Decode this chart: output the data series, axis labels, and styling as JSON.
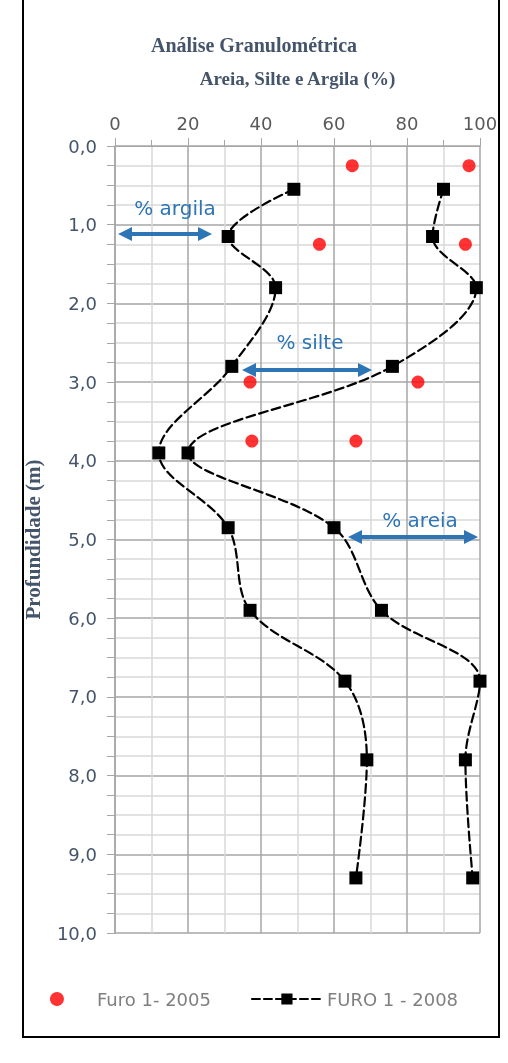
{
  "chart_data": {
    "type": "line",
    "title": "Análise Granulométrica",
    "xlabel": "Areia, Silte e Argila (%)",
    "ylabel": "Profundidade (m)",
    "xlim": [
      0,
      100
    ],
    "xticks": [
      0,
      20,
      40,
      60,
      80,
      100
    ],
    "ylim": [
      10,
      0
    ],
    "yticks": [
      {
        "value": 0,
        "label": "0,0"
      },
      {
        "value": 1,
        "label": "1,0"
      },
      {
        "value": 2,
        "label": "2,0"
      },
      {
        "value": 3,
        "label": "3,0"
      },
      {
        "value": 4,
        "label": "4,0"
      },
      {
        "value": 5,
        "label": "5,0"
      },
      {
        "value": 6,
        "label": "6,0"
      },
      {
        "value": 7,
        "label": "7,0"
      },
      {
        "value": 8,
        "label": "8,0"
      },
      {
        "value": 9,
        "label": "9,0"
      },
      {
        "value": 10,
        "label": "10,0"
      }
    ],
    "grid": true,
    "legend": "bottom",
    "series": [
      {
        "name": "Furo 1- 2005",
        "type": "scatter",
        "color": "#ff0000",
        "marker": "circle",
        "x": [
          65,
          97,
          56,
          96,
          37,
          83,
          37.5,
          66
        ],
        "values": [
          0.25,
          0.25,
          1.25,
          1.25,
          3,
          3,
          3.75,
          3.75
        ]
      },
      {
        "name": "FURO 1 - 2008",
        "type": "line",
        "color": "#000000",
        "marker": "square",
        "line_style": "dashed",
        "x": [
          49,
          31,
          44,
          32,
          12,
          31,
          37,
          63,
          69,
          66,
          null,
          90,
          87,
          99,
          76,
          20,
          60,
          73,
          100,
          96,
          98
        ],
        "values": [
          0.55,
          1.15,
          1.8,
          2.8,
          3.9,
          4.85,
          5.9,
          6.8,
          7.8,
          9.3,
          null,
          0.55,
          1.15,
          1.8,
          2.8,
          3.9,
          4.85,
          5.9,
          6.8,
          7.8,
          9.3
        ]
      }
    ],
    "annotations": [
      "% argila",
      "% silte",
      "% areia"
    ]
  }
}
